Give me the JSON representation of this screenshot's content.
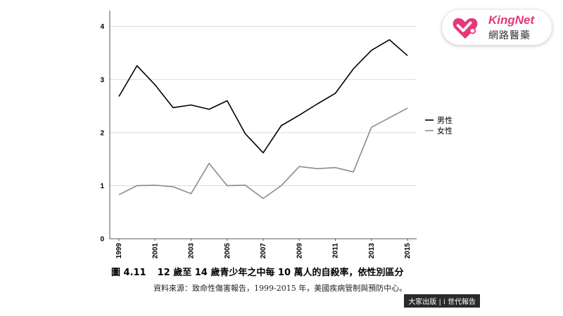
{
  "chart_data": {
    "type": "line",
    "x": [
      1999,
      2000,
      2001,
      2002,
      2003,
      2004,
      2005,
      2006,
      2007,
      2008,
      2009,
      2010,
      2011,
      2012,
      2013,
      2014,
      2015
    ],
    "xticks": [
      "1999",
      "2001",
      "2003",
      "2005",
      "2007",
      "2009",
      "2011",
      "2013",
      "2015"
    ],
    "yticks": [
      "0",
      "1",
      "2",
      "3",
      "4"
    ],
    "ylim": [
      0,
      4.3
    ],
    "grid": "horizontal",
    "legend_position": "right",
    "series": [
      {
        "name": "男性",
        "color": "#000000",
        "values": [
          2.68,
          3.26,
          2.9,
          2.47,
          2.52,
          2.44,
          2.6,
          1.98,
          1.62,
          2.13,
          2.33,
          2.54,
          2.74,
          3.2,
          3.55,
          3.75,
          3.45
        ]
      },
      {
        "name": "女性",
        "color": "#8c8c8c",
        "values": [
          0.83,
          1.0,
          1.01,
          0.98,
          0.85,
          1.42,
          1.0,
          1.01,
          0.76,
          1.0,
          1.36,
          1.32,
          1.34,
          1.26,
          2.1,
          2.28,
          2.46
        ]
      }
    ]
  },
  "caption": {
    "figure_number": "圖 4.11",
    "title": "12 歲至 14 歲青少年之中每 10 萬人的自殺率，依性別區分"
  },
  "source": "資料來源：致命性傷害報告，1999-2015 年，美國疾病管制與預防中心。",
  "publisher": "大家出版 | i 世代報告",
  "logo": {
    "name_en": "KingNet",
    "name_zh": "網路醫藥",
    "icon": "heart-icon",
    "brand_color": "#e5387a"
  }
}
